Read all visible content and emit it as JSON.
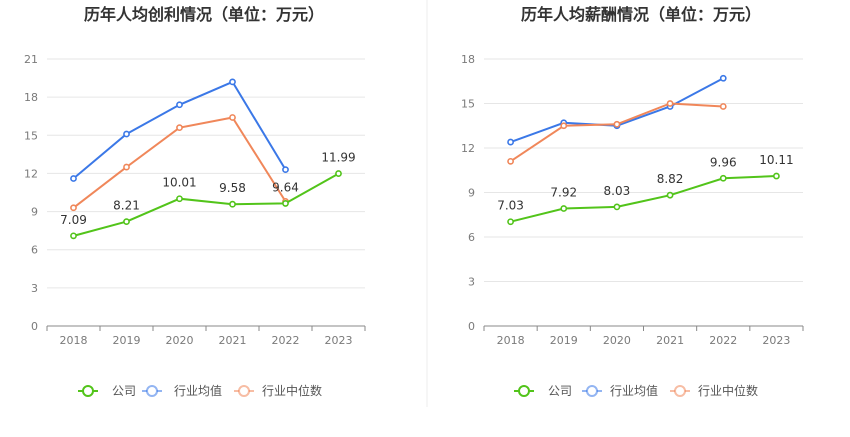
{
  "chart_data": [
    {
      "type": "line",
      "title": "历年人均创利情况（单位：万元）",
      "categories": [
        "2018",
        "2019",
        "2020",
        "2021",
        "2022",
        "2023"
      ],
      "ylim": [
        0,
        21
      ],
      "yticks": [
        0,
        3,
        6,
        9,
        12,
        15,
        18,
        21
      ],
      "grid": true,
      "legend_position": "bottom",
      "series": [
        {
          "name": "公司",
          "color": "#52c41a",
          "values": [
            7.09,
            8.21,
            10.01,
            9.58,
            9.64,
            11.99
          ],
          "labels": [
            "7.09",
            "8.21",
            "10.01",
            "9.58",
            "9.64",
            "11.99"
          ]
        },
        {
          "name": "行业均值",
          "color": "#3b78e7",
          "values": [
            11.6,
            15.1,
            17.4,
            19.2,
            12.3,
            null
          ]
        },
        {
          "name": "行业中位数",
          "color": "#f0875a",
          "values": [
            9.3,
            12.5,
            15.6,
            16.4,
            9.8,
            null
          ]
        }
      ]
    },
    {
      "type": "line",
      "title": "历年人均薪酬情况（单位：万元）",
      "categories": [
        "2018",
        "2019",
        "2020",
        "2021",
        "2022",
        "2023"
      ],
      "ylim": [
        0,
        18
      ],
      "yticks": [
        0,
        3,
        6,
        9,
        12,
        15,
        18
      ],
      "grid": true,
      "legend_position": "bottom",
      "series": [
        {
          "name": "公司",
          "color": "#52c41a",
          "values": [
            7.03,
            7.92,
            8.03,
            8.82,
            9.96,
            10.11
          ],
          "labels": [
            "7.03",
            "7.92",
            "8.03",
            "8.82",
            "9.96",
            "10.11"
          ]
        },
        {
          "name": "行业均值",
          "color": "#3b78e7",
          "values": [
            12.4,
            13.7,
            13.5,
            14.8,
            16.7,
            null
          ]
        },
        {
          "name": "行业中位数",
          "color": "#f0875a",
          "values": [
            11.1,
            13.5,
            13.6,
            15.0,
            14.8,
            null
          ]
        }
      ]
    }
  ]
}
